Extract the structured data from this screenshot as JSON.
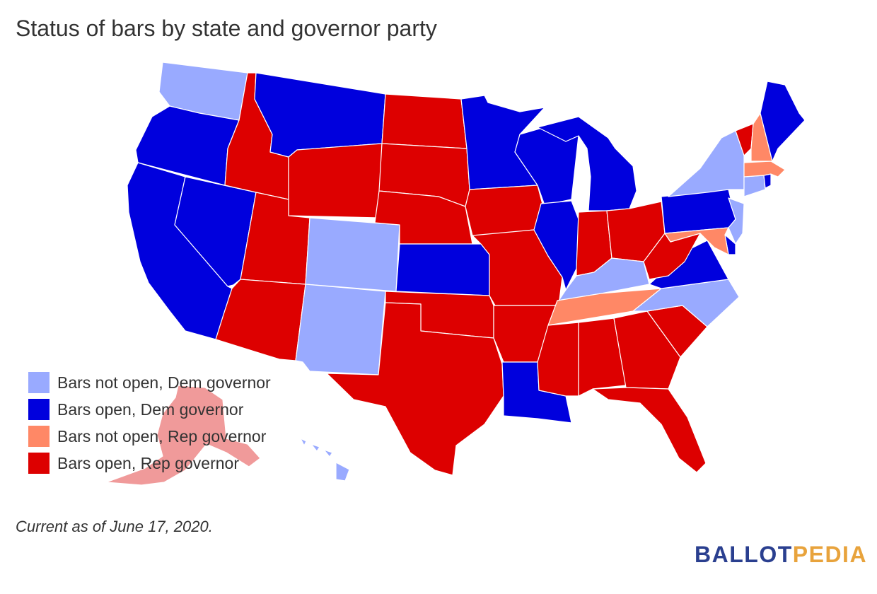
{
  "title": "Status of bars by state and governor party",
  "footnote": "Current as of June 17, 2020.",
  "brand": {
    "part1": "BALLOT",
    "part2": "PEDIA"
  },
  "colors": {
    "dem_closed": "#99aaff",
    "dem_open": "#0000dd",
    "rep_closed": "#ff8866",
    "rep_open": "#dd0000",
    "alaska": "#f09a9a"
  },
  "legend": [
    {
      "key": "dem_closed",
      "label": "Bars not open, Dem governor"
    },
    {
      "key": "dem_open",
      "label": "Bars open, Dem governor"
    },
    {
      "key": "rep_closed",
      "label": "Bars not open, Rep governor"
    },
    {
      "key": "rep_open",
      "label": "Bars open, Rep governor"
    }
  ],
  "states": {
    "WA": "dem_closed",
    "OR": "dem_open",
    "CA": "dem_open",
    "NV": "dem_open",
    "ID": "rep_open",
    "MT": "dem_open",
    "WY": "rep_open",
    "UT": "rep_open",
    "AZ": "rep_open",
    "CO": "dem_closed",
    "NM": "dem_closed",
    "ND": "rep_open",
    "SD": "rep_open",
    "NE": "rep_open",
    "KS": "dem_open",
    "OK": "rep_open",
    "TX": "rep_open",
    "MN": "dem_open",
    "IA": "rep_open",
    "MO": "rep_open",
    "AR": "rep_open",
    "LA": "dem_open",
    "WI": "dem_open",
    "IL": "dem_open",
    "MI": "dem_open",
    "IN": "rep_open",
    "OH": "rep_open",
    "KY": "dem_closed",
    "TN": "rep_closed",
    "MS": "rep_open",
    "AL": "rep_open",
    "GA": "rep_open",
    "FL": "rep_open",
    "SC": "rep_open",
    "NC": "dem_closed",
    "VA": "dem_open",
    "WV": "rep_open",
    "PA": "dem_open",
    "NY": "dem_closed",
    "VT": "rep_open",
    "NH": "rep_closed",
    "ME": "dem_open",
    "MA": "rep_closed",
    "RI": "dem_open",
    "CT": "dem_closed",
    "NJ": "dem_closed",
    "DE": "dem_open",
    "MD": "rep_closed",
    "AK": "alaska",
    "HI": "dem_closed"
  }
}
